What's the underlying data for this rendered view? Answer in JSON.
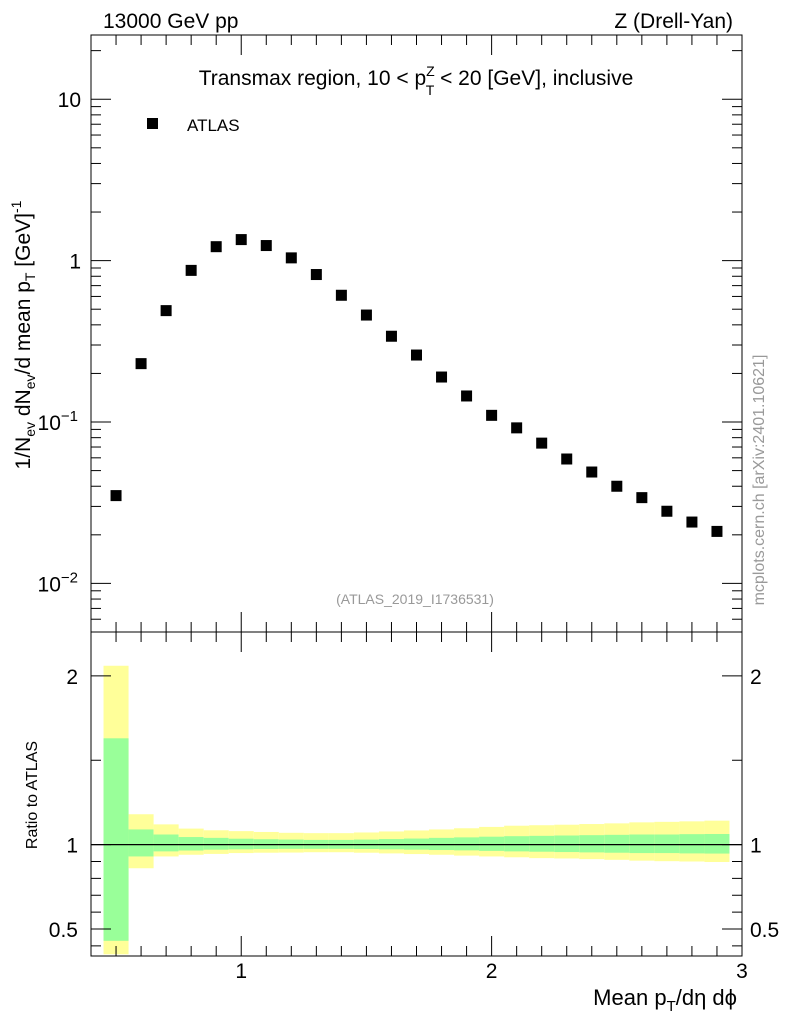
{
  "header": {
    "left": "13000 GeV pp",
    "right": "Z (Drell-Yan)"
  },
  "side_label": "mcplots.cern.ch [arXiv:2401.10621]",
  "chart_data": [
    {
      "type": "scatter",
      "title": "Transmax region, 10 < p_T^Z < 20 [GeV], inclusive",
      "title_parts": {
        "pre": "Transmax region, 10 < p",
        "sup": "Z",
        "sub": "T",
        "post": " < 20 [GeV], inclusive"
      },
      "ylabel": "1/N_ev dN_ev/d mean p_T [GeV]^-1",
      "ylabel_parts": {
        "a": "1/N",
        "a_sub": "ev",
        "b": " dN",
        "b_sub": "ev",
        "c": "/d mean p",
        "c_sub": "T",
        "d": " [GeV]",
        "d_sup": "-1"
      },
      "yscale": "log",
      "xlim": [
        0.4,
        3.0
      ],
      "ylim": [
        0.005,
        25
      ],
      "x_ticks": [
        1,
        2,
        3
      ],
      "x_tick_labels": [
        "1",
        "2",
        "3"
      ],
      "y_ticks": [
        {
          "value": 10,
          "base": "10",
          "exp": ""
        },
        {
          "value": 1,
          "base": "1",
          "exp": ""
        },
        {
          "value": 0.1,
          "base": "10",
          "exp": "−1"
        },
        {
          "value": 0.01,
          "base": "10",
          "exp": "−2"
        }
      ],
      "legend": {
        "position": "top-left",
        "entries": [
          "ATLAS"
        ]
      },
      "watermark": "(ATLAS_2019_I1736531)",
      "series": [
        {
          "name": "ATLAS",
          "marker": "square",
          "color": "#000000",
          "x": [
            0.5,
            0.6,
            0.7,
            0.8,
            0.9,
            1.0,
            1.1,
            1.2,
            1.3,
            1.4,
            1.5,
            1.6,
            1.7,
            1.8,
            1.9,
            2.0,
            2.1,
            2.2,
            2.3,
            2.4,
            2.5,
            2.6,
            2.7,
            2.8,
            2.9
          ],
          "y": [
            0.035,
            0.23,
            0.49,
            0.87,
            1.22,
            1.35,
            1.24,
            1.04,
            0.82,
            0.61,
            0.46,
            0.34,
            0.26,
            0.19,
            0.145,
            0.11,
            0.092,
            0.074,
            0.059,
            0.049,
            0.04,
            0.034,
            0.028,
            0.024,
            0.021
          ]
        }
      ]
    },
    {
      "type": "area",
      "ylabel": "Ratio to ATLAS",
      "xlabel": "Mean p_T/dη dϕ",
      "xlabel_parts": {
        "a": "Mean p",
        "a_sub": "T",
        "b": "/dη dϕ"
      },
      "xlim": [
        0.4,
        3.0
      ],
      "ylim": [
        0.34,
        2.26
      ],
      "x_ticks": [
        1,
        2,
        3
      ],
      "x_tick_labels": [
        "1",
        "2",
        "3"
      ],
      "y_ticks": [
        0.5,
        1,
        2
      ],
      "y_tick_labels": [
        "0.5",
        "1",
        "2"
      ],
      "reference_line": 1,
      "band_colors": {
        "inner": "#99ff99",
        "outer": "#ffff99"
      },
      "bins": [
        {
          "lo": 0.45,
          "hi": 0.55,
          "inner": [
            0.43,
            1.63
          ],
          "outer": [
            0.35,
            2.06
          ]
        },
        {
          "lo": 0.55,
          "hi": 0.65,
          "inner": [
            0.93,
            1.09
          ],
          "outer": [
            0.86,
            1.18
          ]
        },
        {
          "lo": 0.65,
          "hi": 0.75,
          "inner": [
            0.96,
            1.06
          ],
          "outer": [
            0.93,
            1.12
          ]
        },
        {
          "lo": 0.75,
          "hi": 0.85,
          "inner": [
            0.965,
            1.045
          ],
          "outer": [
            0.94,
            1.095
          ]
        },
        {
          "lo": 0.85,
          "hi": 0.95,
          "inner": [
            0.97,
            1.04
          ],
          "outer": [
            0.945,
            1.085
          ]
        },
        {
          "lo": 0.95,
          "hi": 1.05,
          "inner": [
            0.972,
            1.035
          ],
          "outer": [
            0.95,
            1.08
          ]
        },
        {
          "lo": 1.05,
          "hi": 1.15,
          "inner": [
            0.974,
            1.032
          ],
          "outer": [
            0.952,
            1.075
          ]
        },
        {
          "lo": 1.15,
          "hi": 1.25,
          "inner": [
            0.975,
            1.03
          ],
          "outer": [
            0.953,
            1.07
          ]
        },
        {
          "lo": 1.25,
          "hi": 1.35,
          "inner": [
            0.975,
            1.028
          ],
          "outer": [
            0.955,
            1.068
          ]
        },
        {
          "lo": 1.35,
          "hi": 1.45,
          "inner": [
            0.975,
            1.028
          ],
          "outer": [
            0.955,
            1.068
          ]
        },
        {
          "lo": 1.45,
          "hi": 1.55,
          "inner": [
            0.974,
            1.03
          ],
          "outer": [
            0.952,
            1.072
          ]
        },
        {
          "lo": 1.55,
          "hi": 1.65,
          "inner": [
            0.972,
            1.033
          ],
          "outer": [
            0.948,
            1.078
          ]
        },
        {
          "lo": 1.65,
          "hi": 1.75,
          "inner": [
            0.97,
            1.036
          ],
          "outer": [
            0.944,
            1.084
          ]
        },
        {
          "lo": 1.75,
          "hi": 1.85,
          "inner": [
            0.968,
            1.04
          ],
          "outer": [
            0.94,
            1.09
          ]
        },
        {
          "lo": 1.85,
          "hi": 1.95,
          "inner": [
            0.966,
            1.043
          ],
          "outer": [
            0.935,
            1.097
          ]
        },
        {
          "lo": 1.95,
          "hi": 2.05,
          "inner": [
            0.963,
            1.047
          ],
          "outer": [
            0.93,
            1.105
          ]
        },
        {
          "lo": 2.05,
          "hi": 2.15,
          "inner": [
            0.96,
            1.05
          ],
          "outer": [
            0.925,
            1.112
          ]
        },
        {
          "lo": 2.15,
          "hi": 2.25,
          "inner": [
            0.958,
            1.052
          ],
          "outer": [
            0.92,
            1.115
          ]
        },
        {
          "lo": 2.25,
          "hi": 2.35,
          "inner": [
            0.956,
            1.054
          ],
          "outer": [
            0.918,
            1.118
          ]
        },
        {
          "lo": 2.35,
          "hi": 2.45,
          "inner": [
            0.954,
            1.056
          ],
          "outer": [
            0.914,
            1.122
          ]
        },
        {
          "lo": 2.45,
          "hi": 2.55,
          "inner": [
            0.952,
            1.058
          ],
          "outer": [
            0.91,
            1.126
          ]
        },
        {
          "lo": 2.55,
          "hi": 2.65,
          "inner": [
            0.95,
            1.06
          ],
          "outer": [
            0.905,
            1.132
          ]
        },
        {
          "lo": 2.65,
          "hi": 2.75,
          "inner": [
            0.95,
            1.06
          ],
          "outer": [
            0.902,
            1.135
          ]
        },
        {
          "lo": 2.75,
          "hi": 2.85,
          "inner": [
            0.948,
            1.062
          ],
          "outer": [
            0.9,
            1.138
          ]
        },
        {
          "lo": 2.85,
          "hi": 2.95,
          "inner": [
            0.947,
            1.063
          ],
          "outer": [
            0.897,
            1.142
          ]
        }
      ]
    }
  ]
}
